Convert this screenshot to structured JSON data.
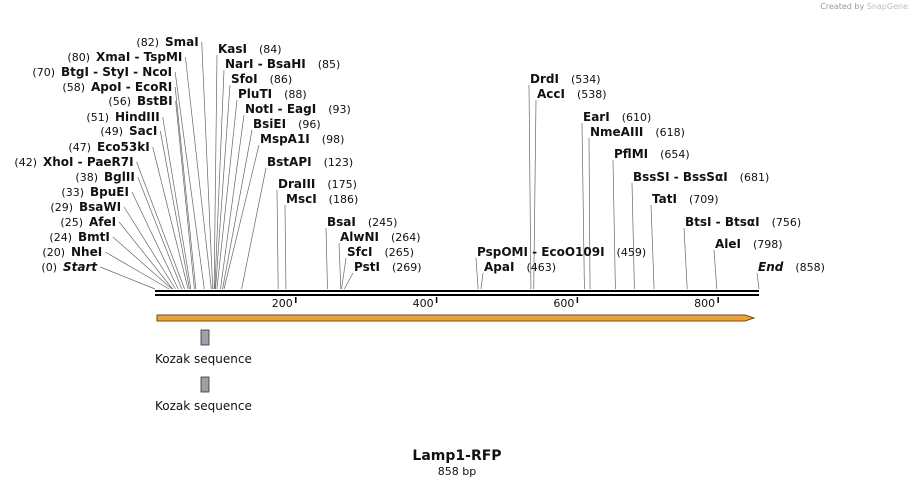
{
  "credit": {
    "prefix": "Created by",
    "brand": "SnapGene"
  },
  "plasmid": {
    "name": "Lamp1-RFP",
    "length_label": "858 bp",
    "length": 858
  },
  "ruler": {
    "ticks": [
      200,
      400,
      600,
      800
    ]
  },
  "colors": {
    "backbone": "#000000",
    "arrow_fill": "#e8a33c",
    "arrow_stroke": "#7a4e0d",
    "feature_box": "#9aa1a9"
  },
  "sites": [
    {
      "name": "SmaI",
      "pos": 82
    },
    {
      "name": "KasI",
      "pos": 84
    },
    {
      "name": "XmaI - TspMI",
      "pos": 80
    },
    {
      "name": "NarI - BsaHI",
      "pos": 85
    },
    {
      "name": "BtgI - StyI - NcoI",
      "pos": 70
    },
    {
      "name": "SfoI",
      "pos": 86
    },
    {
      "name": "ApoI - EcoRI",
      "pos": 58
    },
    {
      "name": "PluTI",
      "pos": 88
    },
    {
      "name": "BstBI",
      "pos": 56
    },
    {
      "name": "NotI - EagI",
      "pos": 93
    },
    {
      "name": "HindIII",
      "pos": 51
    },
    {
      "name": "BsiEI",
      "pos": 96
    },
    {
      "name": "SacI",
      "pos": 49
    },
    {
      "name": "MspA1I",
      "pos": 98
    },
    {
      "name": "Eco53kI",
      "pos": 47
    },
    {
      "name": "XhoI - PaeR7I",
      "pos": 42
    },
    {
      "name": "BstAPI",
      "pos": 123
    },
    {
      "name": "BglII",
      "pos": 38
    },
    {
      "name": "DraIII",
      "pos": 175
    },
    {
      "name": "BpuEI",
      "pos": 33
    },
    {
      "name": "MscI",
      "pos": 186
    },
    {
      "name": "BsaWI",
      "pos": 29
    },
    {
      "name": "AfeI",
      "pos": 25
    },
    {
      "name": "BsaI",
      "pos": 245
    },
    {
      "name": "BmtI",
      "pos": 24
    },
    {
      "name": "AlwNI",
      "pos": 264
    },
    {
      "name": "NheI",
      "pos": 20
    },
    {
      "name": "SfcI",
      "pos": 265
    },
    {
      "name": "Start",
      "pos": 0,
      "italic": true
    },
    {
      "name": "PstI",
      "pos": 269
    },
    {
      "name": "DrdI",
      "pos": 534
    },
    {
      "name": "AccI",
      "pos": 538
    },
    {
      "name": "EarI",
      "pos": 610
    },
    {
      "name": "NmeAIII",
      "pos": 618
    },
    {
      "name": "PflMI",
      "pos": 654
    },
    {
      "name": "BssSI - BssSαI",
      "pos": 681
    },
    {
      "name": "TatI",
      "pos": 709
    },
    {
      "name": "BtsI - BtsαI",
      "pos": 756
    },
    {
      "name": "AleI",
      "pos": 798
    },
    {
      "name": "PspOMI - EcoO109I",
      "pos": 459
    },
    {
      "name": "ApaI",
      "pos": 463
    },
    {
      "name": "End",
      "pos": 858,
      "italic": true
    }
  ],
  "features": [
    {
      "name": "Kozak sequence"
    },
    {
      "name": "Kozak sequence"
    }
  ]
}
